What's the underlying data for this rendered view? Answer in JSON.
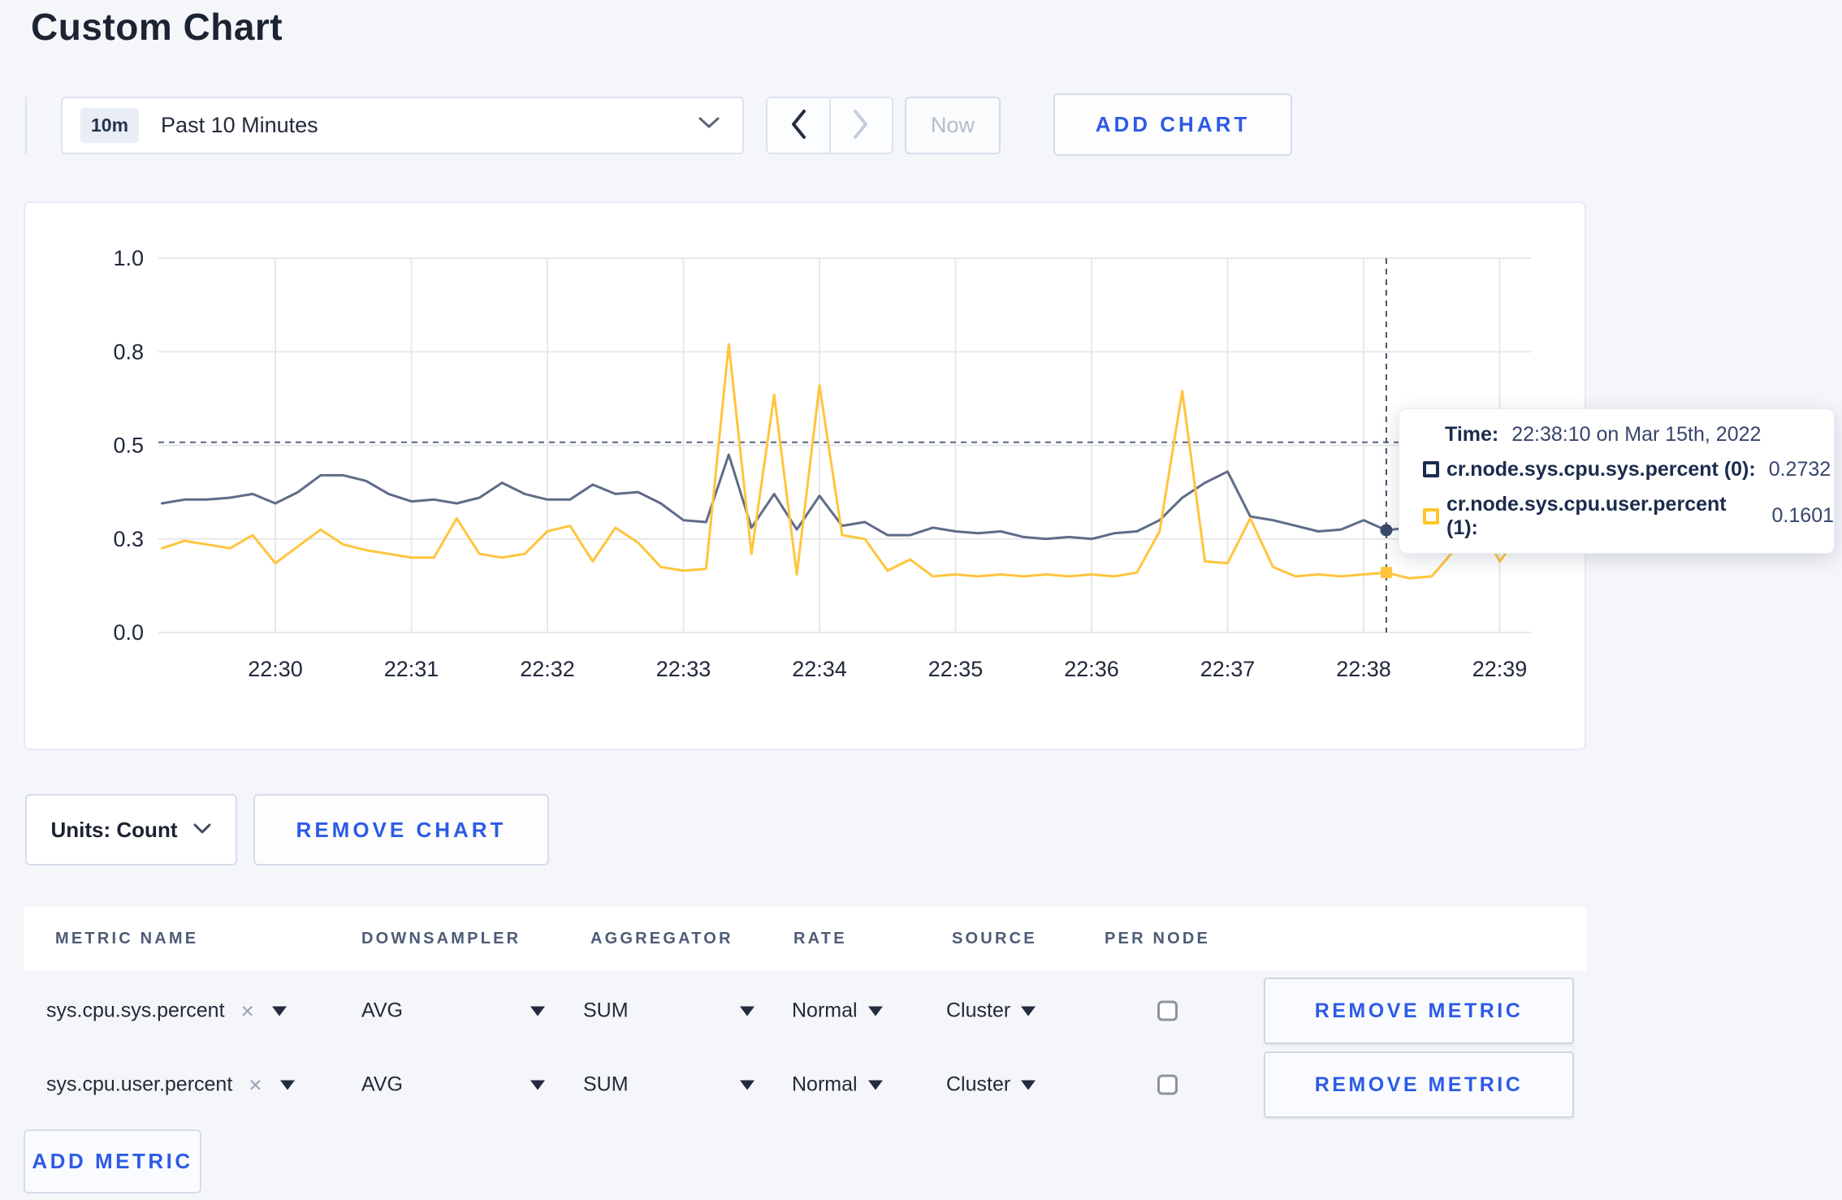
{
  "page": {
    "title": "Custom Chart",
    "background": "#f5f6fa",
    "accent": "#2d5be6"
  },
  "toolbar": {
    "time_badge": "10m",
    "time_label": "Past 10 Minutes",
    "now_label": "Now",
    "add_chart_label": "ADD CHART"
  },
  "chart_controls": {
    "units_label": "Units: Count",
    "remove_chart_label": "REMOVE CHART"
  },
  "tooltip": {
    "time_label": "Time:",
    "time_value": "22:38:10 on Mar 15th, 2022",
    "rows": [
      {
        "name": "cr.node.sys.cpu.sys.percent (0):",
        "value": "0.2732",
        "color": "#1c2b4d"
      },
      {
        "name": "cr.node.sys.cpu.user.percent (1):",
        "value": "0.1601",
        "color": "#ffc629"
      }
    ]
  },
  "metrics_table": {
    "headers": [
      "METRIC NAME",
      "DOWNSAMPLER",
      "AGGREGATOR",
      "RATE",
      "SOURCE",
      "PER NODE"
    ],
    "remove_metric_label": "REMOVE METRIC",
    "add_metric_label": "ADD METRIC",
    "rows": [
      {
        "metric": "sys.cpu.sys.percent",
        "downsampler": "AVG",
        "aggregator": "SUM",
        "rate": "Normal",
        "source": "Cluster",
        "per_node_checked": false
      },
      {
        "metric": "sys.cpu.user.percent",
        "downsampler": "AVG",
        "aggregator": "SUM",
        "rate": "Normal",
        "source": "Cluster",
        "per_node_checked": false
      }
    ]
  },
  "chart_data": {
    "type": "line",
    "title": "",
    "xlabel": "",
    "ylabel": "",
    "y_domain": [
      0,
      1
    ],
    "grid": true,
    "x_ticks": [
      "22:30",
      "22:31",
      "22:32",
      "22:33",
      "22:34",
      "22:35",
      "22:36",
      "22:37",
      "22:38",
      "22:39"
    ],
    "y_tick_labels": [
      "1.0",
      "0.8",
      "0.5",
      "0.3",
      "0.0"
    ],
    "x_times": [
      "22:29:10",
      "22:29:20",
      "22:29:30",
      "22:29:40",
      "22:29:50",
      "22:30:00",
      "22:30:10",
      "22:30:20",
      "22:30:30",
      "22:30:40",
      "22:30:50",
      "22:31:00",
      "22:31:10",
      "22:31:20",
      "22:31:30",
      "22:31:40",
      "22:31:50",
      "22:32:00",
      "22:32:10",
      "22:32:20",
      "22:32:30",
      "22:32:40",
      "22:32:50",
      "22:33:00",
      "22:33:10",
      "22:33:20",
      "22:33:30",
      "22:33:40",
      "22:33:50",
      "22:34:00",
      "22:34:10",
      "22:34:20",
      "22:34:30",
      "22:34:40",
      "22:34:50",
      "22:35:00",
      "22:35:10",
      "22:35:20",
      "22:35:30",
      "22:35:40",
      "22:35:50",
      "22:36:00",
      "22:36:10",
      "22:36:20",
      "22:36:30",
      "22:36:40",
      "22:36:50",
      "22:37:00",
      "22:37:10",
      "22:37:20",
      "22:37:30",
      "22:37:40",
      "22:37:50",
      "22:38:00",
      "22:38:10",
      "22:38:20",
      "22:38:30",
      "22:38:40",
      "22:38:50",
      "22:39:00",
      "22:39:10",
      "22:39:20"
    ],
    "series": [
      {
        "name": "cr.node.sys.cpu.sys.percent (0)",
        "color": "#5e6c88",
        "values": [
          0.345,
          0.355,
          0.355,
          0.36,
          0.37,
          0.345,
          0.375,
          0.42,
          0.42,
          0.405,
          0.37,
          0.35,
          0.355,
          0.345,
          0.36,
          0.4,
          0.37,
          0.355,
          0.355,
          0.395,
          0.37,
          0.375,
          0.345,
          0.3,
          0.295,
          0.475,
          0.28,
          0.37,
          0.275,
          0.365,
          0.285,
          0.295,
          0.26,
          0.26,
          0.28,
          0.27,
          0.265,
          0.27,
          0.255,
          0.25,
          0.255,
          0.25,
          0.265,
          0.27,
          0.3,
          0.36,
          0.4,
          0.43,
          0.31,
          0.3,
          0.285,
          0.27,
          0.275,
          0.3,
          0.2732,
          0.28,
          0.29,
          0.31,
          0.285,
          0.28,
          0.285,
          0.28
        ]
      },
      {
        "name": "cr.node.sys.cpu.user.percent (1)",
        "color": "#ffc53d",
        "values": [
          0.225,
          0.245,
          0.235,
          0.225,
          0.26,
          0.185,
          0.23,
          0.275,
          0.235,
          0.22,
          0.21,
          0.2,
          0.2,
          0.305,
          0.21,
          0.2,
          0.21,
          0.27,
          0.285,
          0.19,
          0.28,
          0.24,
          0.175,
          0.165,
          0.17,
          0.77,
          0.21,
          0.635,
          0.155,
          0.66,
          0.26,
          0.25,
          0.165,
          0.195,
          0.15,
          0.155,
          0.15,
          0.155,
          0.15,
          0.155,
          0.15,
          0.155,
          0.15,
          0.16,
          0.27,
          0.645,
          0.19,
          0.185,
          0.305,
          0.175,
          0.15,
          0.155,
          0.15,
          0.155,
          0.1601,
          0.145,
          0.15,
          0.22,
          0.305,
          0.19,
          0.27,
          0.24
        ]
      }
    ],
    "hover": {
      "time": "22:38:10",
      "guide_value": 0.508,
      "markers": [
        {
          "series": 0,
          "value": 0.2732,
          "color": "#3b4a68"
        },
        {
          "series": 1,
          "value": 0.1601,
          "color": "#ffc53d"
        }
      ]
    },
    "legend_position": "tooltip"
  }
}
